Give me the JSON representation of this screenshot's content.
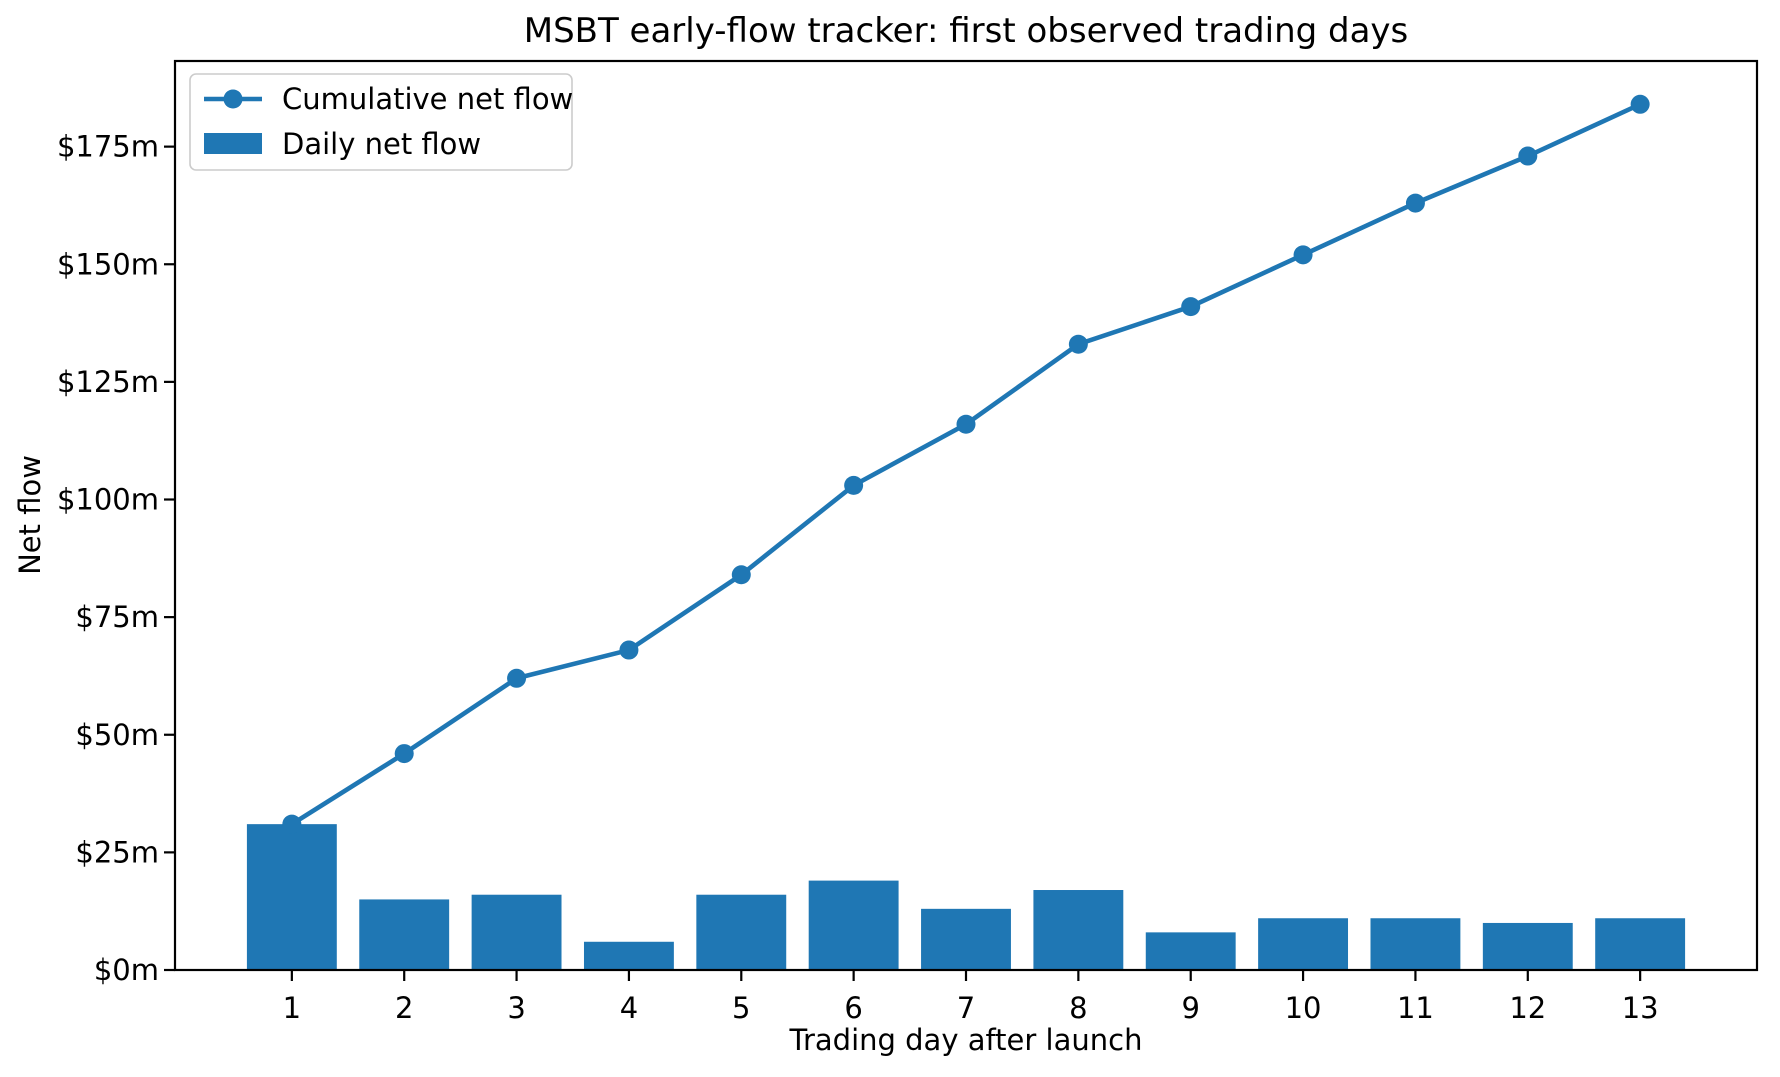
{
  "figure": {
    "background": "#ffffff"
  },
  "chart_data": {
    "type": "bar",
    "subtype": "bar-and-line-combo",
    "title": "MSBT early-flow tracker: first observed trading days",
    "xlabel": "Trading day after launch",
    "ylabel": "Net flow",
    "categories": [
      "1",
      "2",
      "3",
      "4",
      "5",
      "6",
      "7",
      "8",
      "9",
      "10",
      "11",
      "12",
      "13"
    ],
    "series": [
      {
        "name": "Cumulative net flow",
        "kind": "line",
        "marker": "circle",
        "color": "#1f77b4",
        "values": [
          31,
          46,
          62,
          68,
          84,
          103,
          116,
          133,
          141,
          152,
          163,
          173,
          184
        ]
      },
      {
        "name": "Daily net flow",
        "kind": "bar",
        "color": "#1f77b4",
        "values": [
          31,
          15,
          16,
          6,
          16,
          19,
          13,
          17,
          8,
          11,
          11,
          10,
          11
        ]
      }
    ],
    "xlim": [
      -0.04,
      14.04
    ],
    "ylim": [
      0,
      193.2
    ],
    "yticks": {
      "values": [
        0,
        25,
        50,
        75,
        100,
        125,
        150,
        175
      ],
      "labels": [
        "$0m",
        "$25m",
        "$50m",
        "$75m",
        "$100m",
        "$125m",
        "$150m",
        "$175m"
      ]
    },
    "bar_width_units": 0.8,
    "grid": false,
    "legend": {
      "position": "upper left",
      "entries": [
        "Cumulative net flow",
        "Daily net flow"
      ]
    }
  },
  "styles": {
    "accent": "#1f77b4",
    "text_color": "#000000",
    "spine_color": "#000000",
    "legend_border": "#cccccc",
    "legend_fill": "#ffffff"
  }
}
